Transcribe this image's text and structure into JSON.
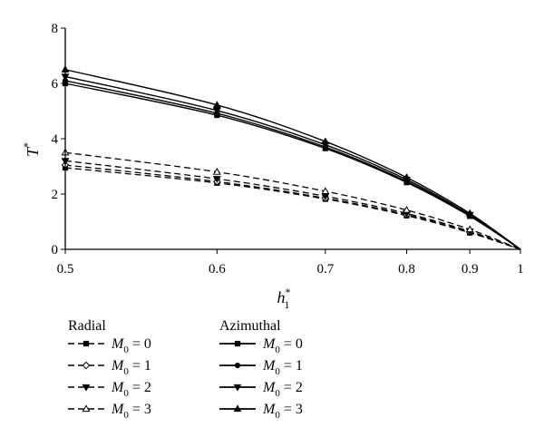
{
  "chart_data": {
    "type": "line",
    "xlabel": "h",
    "xlabel_superscript": "*",
    "xlabel_subscript": "1",
    "ylabel": "T",
    "ylabel_superscript": "*",
    "xlim": [
      0.5,
      1.0
    ],
    "ylim": [
      0,
      8
    ],
    "x_scale": "reciprocal",
    "xticks": [
      {
        "value": 0.5,
        "label": "0.5"
      },
      {
        "value": 0.6,
        "label": "0.6"
      },
      {
        "value": 0.7,
        "label": "0.7"
      },
      {
        "value": 0.8,
        "label": "0.8"
      },
      {
        "value": 0.9,
        "label": "0.9"
      },
      {
        "value": 1.0,
        "label": "1"
      }
    ],
    "yticks": [
      {
        "value": 0,
        "label": "0"
      },
      {
        "value": 2,
        "label": "2"
      },
      {
        "value": 4,
        "label": "4"
      },
      {
        "value": 6,
        "label": "6"
      },
      {
        "value": 8,
        "label": "8"
      }
    ],
    "grid": false,
    "legend_groups": [
      {
        "title": "Radial",
        "style": "dashed",
        "entries": [
          {
            "var": "M",
            "sub": "0",
            "eq": " = 0",
            "marker": "square"
          },
          {
            "var": "M",
            "sub": "0",
            "eq": " = 1",
            "marker": "diamond"
          },
          {
            "var": "M",
            "sub": "0",
            "eq": " = 2",
            "marker": "triangle-down"
          },
          {
            "var": "M",
            "sub": "0",
            "eq": " = 3",
            "marker": "triangle-up-open"
          }
        ]
      },
      {
        "title": "Azimuthal",
        "style": "solid",
        "entries": [
          {
            "var": "M",
            "sub": "0",
            "eq": " = 0",
            "marker": "square"
          },
          {
            "var": "M",
            "sub": "0",
            "eq": " = 1",
            "marker": "circle"
          },
          {
            "var": "M",
            "sub": "0",
            "eq": " = 2",
            "marker": "triangle-down"
          },
          {
            "var": "M",
            "sub": "0",
            "eq": " = 3",
            "marker": "triangle-up"
          }
        ]
      }
    ],
    "series": [
      {
        "group": "Radial",
        "label": "M0 = 0",
        "style": "dashed",
        "marker": "square",
        "x": [
          0.5,
          0.6,
          0.7,
          0.8,
          0.9,
          1.0
        ],
        "y": [
          2.95,
          2.4,
          1.82,
          1.22,
          0.6,
          0.0
        ]
      },
      {
        "group": "Radial",
        "label": "M0 = 1",
        "style": "dashed",
        "marker": "diamond",
        "x": [
          0.5,
          0.6,
          0.7,
          0.8,
          0.9,
          1.0
        ],
        "y": [
          3.05,
          2.45,
          1.85,
          1.25,
          0.62,
          0.0
        ]
      },
      {
        "group": "Radial",
        "label": "M0 = 2",
        "style": "dashed",
        "marker": "triangle-down",
        "x": [
          0.5,
          0.6,
          0.7,
          0.8,
          0.9,
          1.0
        ],
        "y": [
          3.2,
          2.55,
          1.92,
          1.3,
          0.65,
          0.0
        ]
      },
      {
        "group": "Radial",
        "label": "M0 = 3",
        "style": "dashed",
        "marker": "triangle-up-open",
        "x": [
          0.5,
          0.6,
          0.7,
          0.8,
          0.9,
          1.0
        ],
        "y": [
          3.5,
          2.8,
          2.1,
          1.42,
          0.72,
          0.0
        ]
      },
      {
        "group": "Azimuthal",
        "label": "M0 = 0",
        "style": "solid",
        "marker": "square",
        "x": [
          0.5,
          0.6,
          0.7,
          0.8,
          0.9,
          1.0
        ],
        "y": [
          6.0,
          4.85,
          3.65,
          2.42,
          1.2,
          0.0
        ]
      },
      {
        "group": "Azimuthal",
        "label": "M0 = 1",
        "style": "solid",
        "marker": "circle",
        "x": [
          0.5,
          0.6,
          0.7,
          0.8,
          0.9,
          1.0
        ],
        "y": [
          6.1,
          4.92,
          3.7,
          2.46,
          1.22,
          0.0
        ]
      },
      {
        "group": "Azimuthal",
        "label": "M0 = 2",
        "style": "solid",
        "marker": "triangle-down",
        "x": [
          0.5,
          0.6,
          0.7,
          0.8,
          0.9,
          1.0
        ],
        "y": [
          6.25,
          5.02,
          3.78,
          2.52,
          1.25,
          0.0
        ]
      },
      {
        "group": "Azimuthal",
        "label": "M0 = 3",
        "style": "solid",
        "marker": "triangle-up",
        "x": [
          0.5,
          0.6,
          0.7,
          0.8,
          0.9,
          1.0
        ],
        "y": [
          6.5,
          5.22,
          3.9,
          2.6,
          1.3,
          0.0
        ]
      }
    ]
  }
}
